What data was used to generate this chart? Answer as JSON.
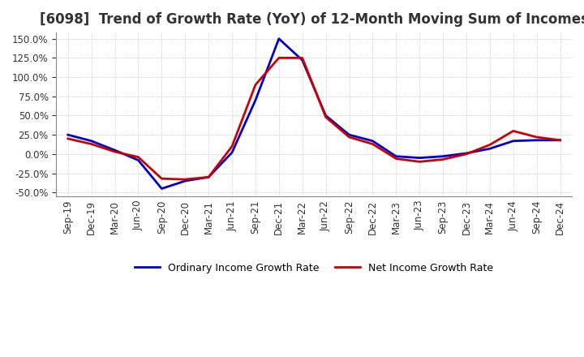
{
  "title": "[6098]  Trend of Growth Rate (YoY) of 12-Month Moving Sum of Incomes",
  "title_fontsize": 12,
  "background_color": "#ffffff",
  "grid_color": "#aaaaaa",
  "ordinary_color": "#0000cc",
  "net_color": "#cc0000",
  "legend_labels": [
    "Ordinary Income Growth Rate",
    "Net Income Growth Rate"
  ],
  "x_labels": [
    "Sep-19",
    "Dec-19",
    "Mar-20",
    "Jun-20",
    "Sep-20",
    "Dec-20",
    "Mar-21",
    "Jun-21",
    "Sep-21",
    "Dec-21",
    "Mar-22",
    "Jun-22",
    "Sep-22",
    "Dec-22",
    "Mar-23",
    "Jun-23",
    "Sep-23",
    "Dec-23",
    "Mar-24",
    "Jun-24",
    "Sep-24",
    "Dec-24"
  ],
  "ordinary_data": [
    0.25,
    0.17,
    0.05,
    -0.08,
    -0.45,
    -0.35,
    -0.3,
    0.02,
    0.7,
    1.5,
    1.22,
    0.5,
    0.25,
    0.17,
    -0.03,
    -0.05,
    -0.03,
    0.01,
    0.07,
    0.17,
    0.18,
    0.18
  ],
  "net_data": [
    0.2,
    0.13,
    0.03,
    -0.04,
    -0.32,
    -0.33,
    -0.3,
    0.1,
    0.9,
    1.25,
    1.25,
    0.48,
    0.22,
    0.13,
    -0.06,
    -0.1,
    -0.07,
    0.0,
    0.12,
    0.3,
    0.22,
    0.18
  ],
  "yticks": [
    -0.5,
    -0.25,
    0.0,
    0.25,
    0.5,
    0.75,
    1.0,
    1.25,
    1.5
  ],
  "ylim": [
    -0.55,
    1.58
  ],
  "linewidth": 2.0
}
